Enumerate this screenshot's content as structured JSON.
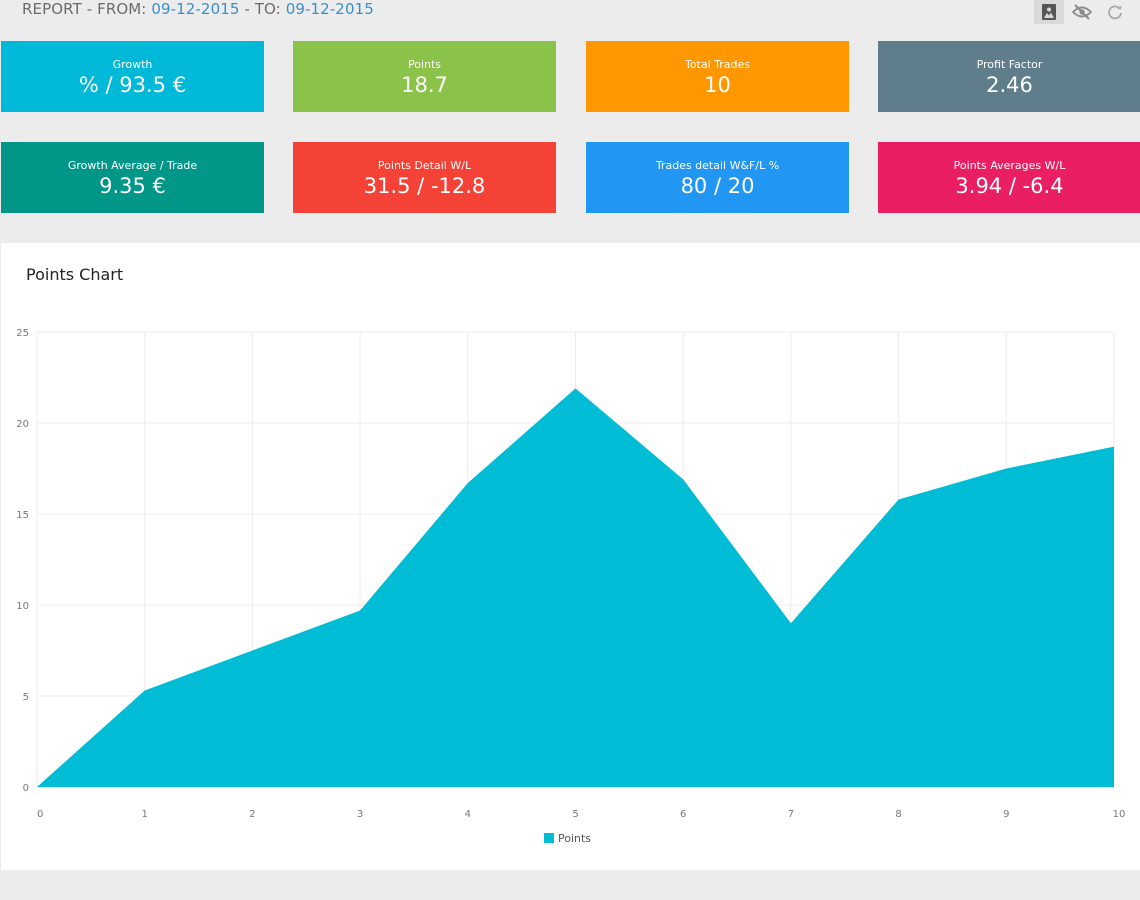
{
  "header": {
    "prefix": "REPORT - FROM: ",
    "from_date": "09-12-2015",
    "middle": " - TO: ",
    "to_date": "09-12-2015"
  },
  "toolbar": {
    "buttons": [
      {
        "icon": "image-icon",
        "active": true
      },
      {
        "icon": "eye-off-icon",
        "active": false
      },
      {
        "icon": "refresh-icon",
        "active": false
      }
    ]
  },
  "cards": [
    {
      "label": "Growth",
      "value": "% / 93.5 €",
      "color": "#00b9d8"
    },
    {
      "label": "Points",
      "value": "18.7",
      "color": "#8bc34a"
    },
    {
      "label": "Total Trades",
      "value": "10",
      "color": "#ff9800"
    },
    {
      "label": "Profit Factor",
      "value": "2.46",
      "color": "#607d8b"
    },
    {
      "label": "Growth Average / Trade",
      "value": "9.35 €",
      "color": "#009688"
    },
    {
      "label": "Points Detail W/L",
      "value": "31.5 / -12.8",
      "color": "#f44336"
    },
    {
      "label": "Trades detail W&F/L %",
      "value": "80 / 20",
      "color": "#2196f3"
    },
    {
      "label": "Points Averages W/L",
      "value": "3.94 / -6.4",
      "color": "#e91e63"
    }
  ],
  "chart_panel": {
    "title": "Points Chart"
  },
  "chart_data": {
    "type": "area",
    "title": "Points Chart",
    "x": [
      0,
      1,
      2,
      3,
      4,
      5,
      6,
      7,
      8,
      9,
      10
    ],
    "series": [
      {
        "name": "Points",
        "values": [
          0,
          5.3,
          7.5,
          9.7,
          16.7,
          21.9,
          16.9,
          9.0,
          15.8,
          17.5,
          18.7
        ],
        "color": "#00bcd4"
      }
    ],
    "xticks": [
      "0",
      "1",
      "2",
      "3",
      "4",
      "5",
      "6",
      "7",
      "8",
      "9",
      "10"
    ],
    "yticks": [
      "0",
      "5",
      "10",
      "15",
      "20",
      "25"
    ],
    "xlim": [
      0,
      10
    ],
    "ylim": [
      0,
      25
    ],
    "grid": true,
    "legend": "bottom-center"
  }
}
